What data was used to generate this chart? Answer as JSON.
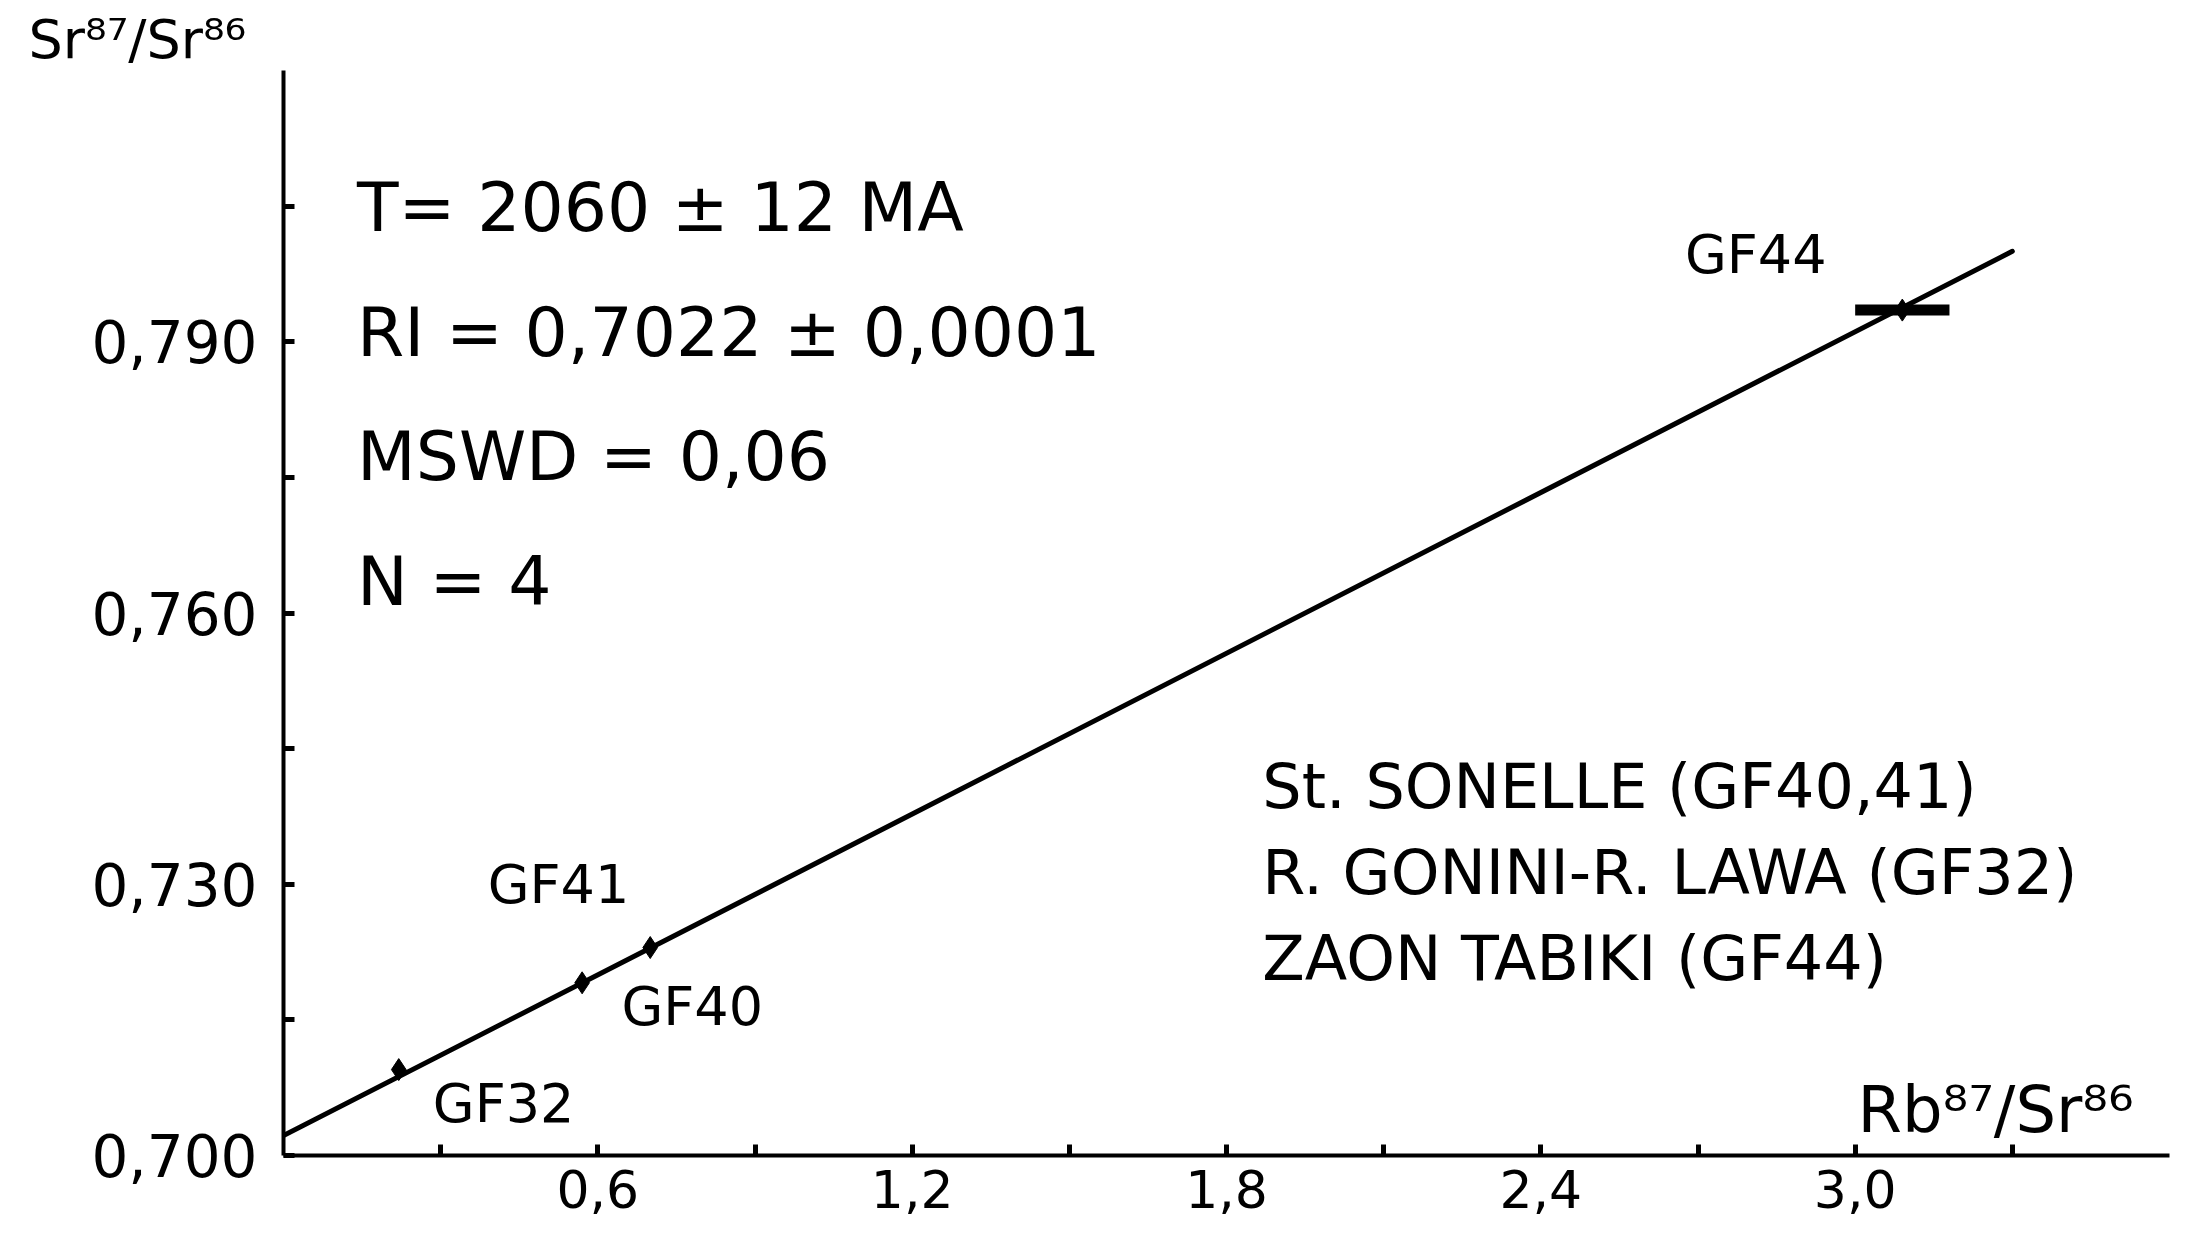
{
  "chart_data": {
    "type": "scatter",
    "xlabel": "Rb⁸⁷/Sr⁸⁶",
    "ylabel": "Sr⁸⁷/Sr⁸⁶",
    "xlim": [
      0,
      3.6
    ],
    "ylim": [
      0.7,
      0.82
    ],
    "xticks": [
      {
        "value": 0.3,
        "label": null
      },
      {
        "value": 0.6,
        "label": "0,6"
      },
      {
        "value": 0.9,
        "label": null
      },
      {
        "value": 1.2,
        "label": "1,2"
      },
      {
        "value": 1.5,
        "label": null
      },
      {
        "value": 1.8,
        "label": "1,8"
      },
      {
        "value": 2.1,
        "label": null
      },
      {
        "value": 2.4,
        "label": "2,4"
      },
      {
        "value": 2.7,
        "label": null
      },
      {
        "value": 3.0,
        "label": "3,0"
      },
      {
        "value": 3.3,
        "label": null
      }
    ],
    "yticks": [
      {
        "value": 0.7,
        "label": "0,700"
      },
      {
        "value": 0.715,
        "label": null
      },
      {
        "value": 0.73,
        "label": "0,730"
      },
      {
        "value": 0.745,
        "label": null
      },
      {
        "value": 0.76,
        "label": "0,760"
      },
      {
        "value": 0.775,
        "label": null
      },
      {
        "value": 0.79,
        "label": "0,790"
      },
      {
        "value": 0.805,
        "label": null
      }
    ],
    "series": [
      {
        "type": "line",
        "x": [
          0,
          3.3
        ],
        "values": [
          0.7022,
          0.8
        ],
        "color": "#000000",
        "line_style": "solid"
      },
      {
        "x": [
          0.22,
          0.57,
          0.7,
          3.09
        ],
        "values": [
          0.7095,
          0.7191,
          0.723,
          0.7935
        ],
        "xerrors": [
          null,
          null,
          null,
          0.09
        ],
        "color": "#000000",
        "marker": "diamond"
      }
    ],
    "annotations": [
      "T= 2060 ± 12 MA\nRI = 0,7022 ± 0,0001\nMSWD = 0,06\nN = 4",
      "St. SONELLE (GF40,41)\nR. GONINI-R. LAWA (GF32)\nZAON TABIKI (GF44)",
      "GF32",
      "GF40",
      "GF41",
      "GF44"
    ]
  }
}
